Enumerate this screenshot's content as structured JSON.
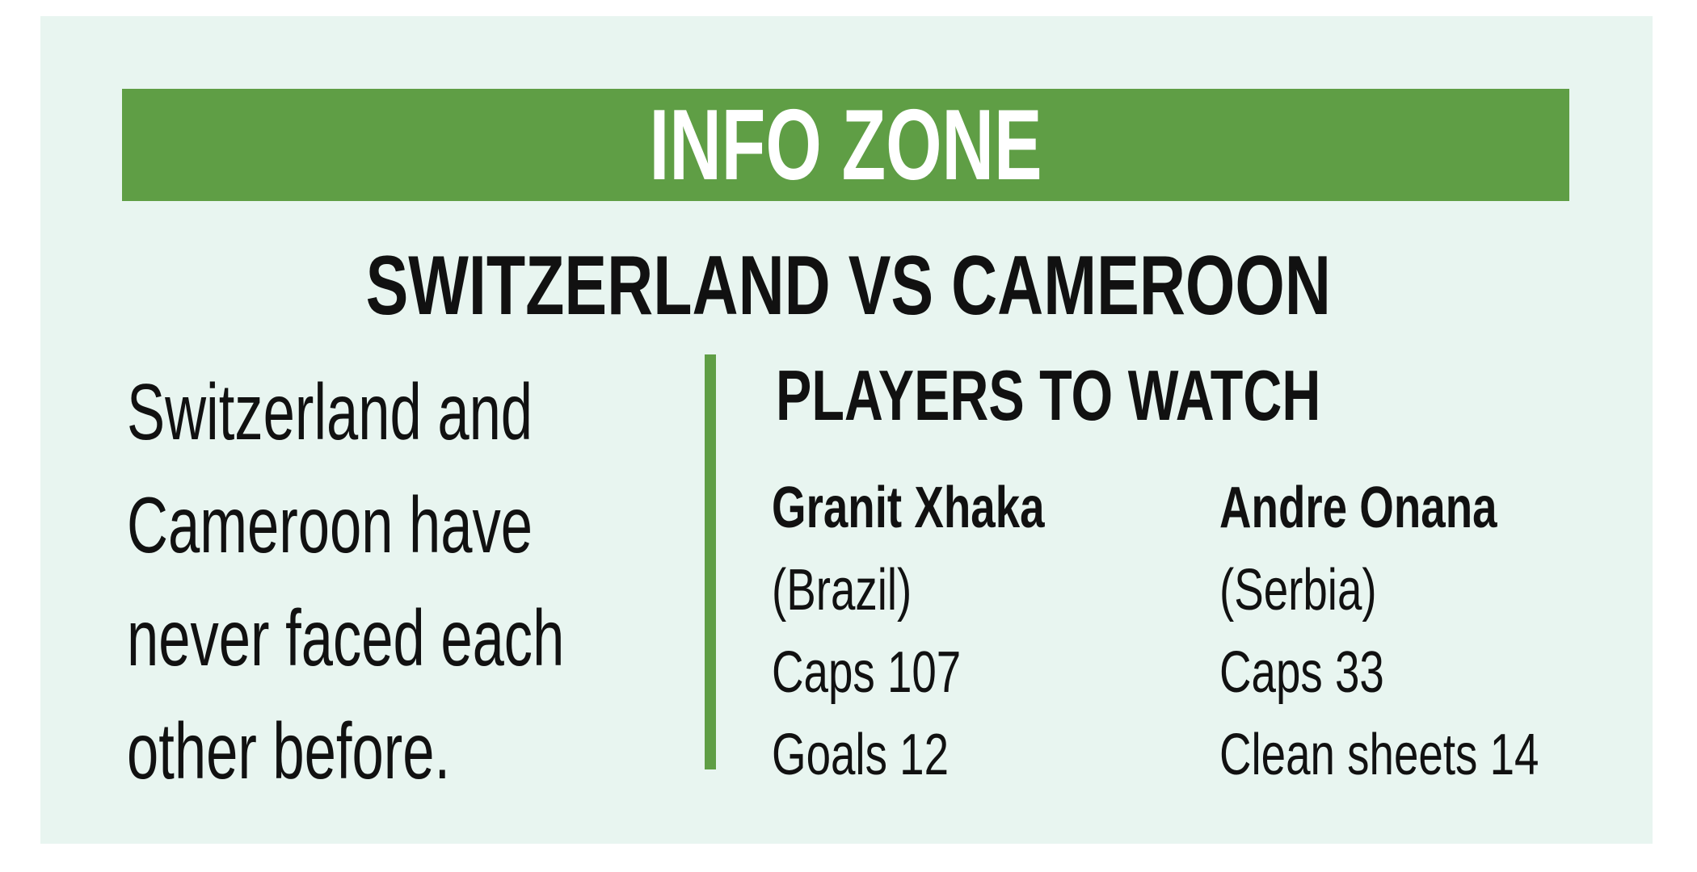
{
  "header": {
    "label": "INFO ZONE"
  },
  "title": "SWITZERLAND VS CAMEROON",
  "summary_lines": [
    "Switzerland and",
    "Cameroon have",
    "never faced each",
    "other before."
  ],
  "players_heading": "PLAYERS TO WATCH",
  "players": [
    {
      "name": "Granit Xhaka",
      "opponent": "(Brazil)",
      "stat1": "Caps 107",
      "stat2": "Goals 12"
    },
    {
      "name": "Andre Onana",
      "opponent": "(Serbia)",
      "stat1": "Caps 33",
      "stat2": "Clean sheets 14"
    }
  ],
  "colors": {
    "accent": "#5f9e45",
    "background": "#e8f5f0"
  }
}
